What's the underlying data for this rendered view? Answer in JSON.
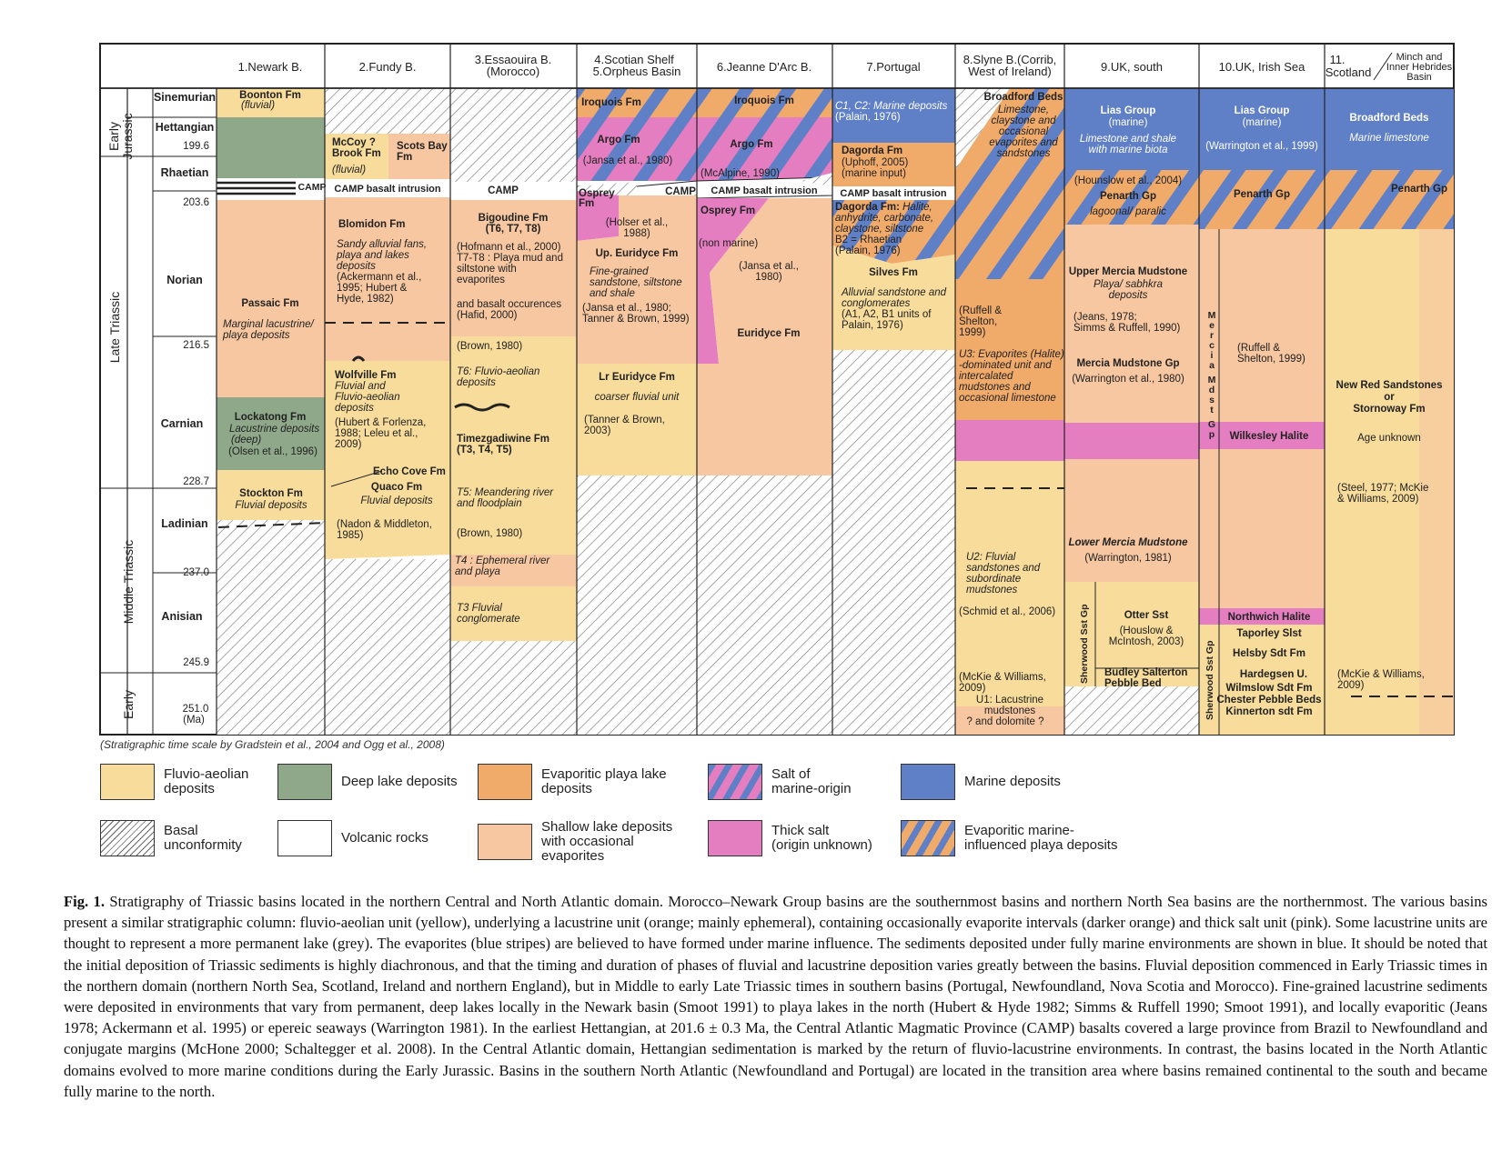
{
  "colors": {
    "fluvio": "#f7dc9b",
    "deep_lake": "#8fa88a",
    "evaporitic": "#f0aa6a",
    "shallow_lake": "#f6c7a0",
    "marine": "#5f7fc6",
    "thick_salt": "#e57ec0",
    "white": "#ffffff"
  },
  "columns": [
    "1.Newark B.",
    "2.Fundy B.",
    "3.Essaouira B.\n(Morocco)",
    "4.Scotian Shelf\n5.Orpheus Basin",
    "6.Jeanne D'Arc B.",
    "7.Portugal",
    "8.Slyne B.(Corrib,\nWest of Ireland)",
    "9.UK, south",
    "10.UK, Irish Sea",
    "11.\nScotland",
    "Minch and\nInner Hebrides\nBasin"
  ],
  "epochs": [
    "Early\nJurassic",
    "Late Triassic",
    "Middle Triassic",
    "Early"
  ],
  "stages": [
    "Sinemurian",
    "Hettangian",
    "Rhaetian",
    "Norian",
    "Carnian",
    "Ladinian",
    "Anisian"
  ],
  "ages": [
    "199.6",
    "203.6",
    "216.5",
    "228.7",
    "237.0",
    "245.9",
    "251.0\n(Ma)"
  ],
  "labels": {
    "c1": [
      "Boonton Fm",
      "(fluvial)",
      "CAMP",
      "Passaic Fm",
      "Marginal lacustrine/\nplaya deposits",
      "Lockatong Fm",
      "Lacustrine deposits\n(deep)",
      "(Olsen et al., 1996)",
      "Stockton Fm",
      "Fluvial deposits"
    ],
    "c2": [
      "McCoy\nBrook Fm",
      "Scots Bay\nFm",
      "(fluvial)",
      "CAMP basalt intrusion",
      "Blomidon Fm",
      "Sandy alluvial fans,\nplaya and lakes\ndeposits\n(Ackermann et al.,\n1995; Hubert &\nHyde, 1982)",
      "Wolfville Fm",
      "Fluvial and\nFluvio-aeolian\ndeposits",
      "(Hubert & Forlenza,\n1988; Leleu et al.,\n2009)",
      "Echo Cove Fm",
      "Quaco Fm",
      "Fluvial deposits",
      "(Nadon & Middleton,\n1985)"
    ],
    "c3": [
      "CAMP",
      "Bigoudine Fm\n(T6, T7, T8)",
      "(Hofmann et al., 2000)\nT7-T8 : Playa mud and\nsiltstone with\nevaporites",
      "and basalt occurences\n(Hafid, 2000)",
      "(Brown, 1980)",
      "T6: Fluvio-aeolian\ndeposits",
      "Timezgadiwine Fm\n(T3, T4, T5)",
      "T5: Meandering river\nand floodplain",
      "(Brown, 1980)",
      "T4 : Ephemeral river\nand playa",
      "T3 Fluvial\nconglomerate"
    ],
    "c4": [
      "Iroquois Fm",
      "Argo Fm",
      "(Jansa et al., 1980)",
      "Osprey\nFm",
      "CAMP",
      "(Holser et al.,\n1988)",
      "Up. Euridyce Fm",
      "Fine-grained\nsandstone, siltstone\nand shale",
      "(Jansa et al., 1980;\nTanner & Brown, 1999)",
      "Lr Euridyce Fm",
      "coarser fluvial unit",
      "(Tanner & Brown,\n2003)"
    ],
    "c5": [
      "Iroquois Fm",
      "Argo Fm",
      "(McAlpine, 1990)",
      "CAMP basalt intrusion",
      "Osprey Fm",
      "(non marine)",
      "(Jansa et al.,\n1980)",
      "Euridyce Fm"
    ],
    "c6": [
      "C1, C2: Marine deposits\n(Palain, 1976)",
      "Dagorda Fm",
      "(Uphoff, 2005)\n(marine input)",
      "CAMP basalt intrusion",
      "Dagorda Fm: Halite,\nanhydrite, carbonate,\nclaystone, siltstone\nB2 = Rhaetian\n(Palain, 1976)",
      "Silves Fm",
      "Alluvial sandstone and\nconglomerates\n(A1, A2, B1 units of\nPalain, 1976)"
    ],
    "c7": [
      "Broadford Beds",
      "Limestone,\nclaystone and\noccasional\nevaporites and\nsandstones",
      "(Ruffell &\nShelton,\n1999)",
      "U3: Evaporites (Halite)\n-dominated unit and\nintercalated\nmudstones and\noccasional limestone",
      "U2: Fluvial\nsandstones and\nsubordinate\nmudstones",
      "(Schmid et al., 2006)",
      "(McKie & Williams,\n2009)",
      "U1: Lacustrine\nmudstones\n? and dolomite"
    ],
    "c8": [
      "Lias Group",
      "(marine)",
      "Limestone and shale\nwith marine biota",
      "(Hounslow et al., 2004)",
      "Penarth Gp",
      "lagoonal/ paralic",
      "Upper Mercia Mudstone",
      "Playa/ sabhkra\ndeposits",
      "(Jeans, 1978;\nSimms & Ruffell, 1990)",
      "Mercia Mudstone Gp",
      "(Warrington et al., 1980)",
      "Lower Mercia Mudstone",
      "(Warrington, 1981)",
      "Sherwood Sst Gp",
      "Otter Sst",
      "(Houslow &\nMcIntosh, 2003)",
      "Budley Salterton\nPebble Bed"
    ],
    "c9": [
      "Lias Group",
      "(marine)",
      "(Warrington et al., 1999)",
      "Penarth Gp",
      "M\ne\nr\nc\ni\na\n\nM\nd\ns\nt\n\nG\np",
      "(Ruffell &\nShelton, 1999)",
      "Wilkesley Halite",
      "Northwich Halite",
      "Taporley Slst",
      "Helsby Sdt Fm",
      "Hardegsen U.",
      "Wilmslow Sdt Fm",
      "Chester Pebble Beds",
      "Kinnerton sdt Fm",
      "Sherwood Sst Gp"
    ],
    "c10": [
      "Broadford Beds",
      "Marine limestone",
      "Penarth Gp",
      "New Red Sandstones\nor\nStornoway Fm",
      "Age unknown",
      "(Steel, 1977; McKie\n& Williams, 2009)",
      "(McKie & Williams,\n2009)"
    ]
  },
  "timescale_credit": "(Stratigraphic time scale by Gradstein et al., 2004 and Ogg et al., 2008)",
  "legend": [
    {
      "label": "Fluvio-aeolian\ndeposits",
      "swatch": "fluvio"
    },
    {
      "label": "Deep lake deposits",
      "swatch": "deep_lake"
    },
    {
      "label": "Evaporitic playa lake\ndeposits",
      "swatch": "evaporitic"
    },
    {
      "label": "Salt of\nmarine-origin",
      "swatch": "salt_marine"
    },
    {
      "label": "Marine deposits",
      "swatch": "marine"
    },
    {
      "label": "Basal\nunconformity",
      "swatch": "unconformity"
    },
    {
      "label": "Volcanic rocks",
      "swatch": "volcanic"
    },
    {
      "label": "Shallow lake deposits\nwith occasional\nevaporites",
      "swatch": "shallow_lake"
    },
    {
      "label": "Thick salt\n(origin unknown)",
      "swatch": "thick_salt"
    },
    {
      "label": "Evaporitic marine-\ninfluenced playa deposits",
      "swatch": "evap_marine"
    }
  ],
  "caption": {
    "fig": "Fig. 1.",
    "text": "Stratigraphy of Triassic basins located in the northern Central and North Atlantic domain. Morocco–Newark Group basins are the southernmost basins and northern North Sea basins are the northernmost. The various basins present a similar stratigraphic column: fluvio-aeolian unit (yellow), underlying a lacustrine unit (orange; mainly ephemeral), containing occasionally evaporite intervals (darker orange) and thick salt unit (pink). Some lacustrine units are thought to represent a more permanent lake (grey). The evaporites (blue stripes) are believed to have formed under marine influence. The sediments deposited under fully marine environments are shown in blue. It should be noted that the initial deposition of Triassic sediments is highly diachronous, and that the timing and duration of phases of fluvial and lacustrine deposition varies greatly between the basins. Fluvial deposition commenced in Early Triassic times in the northern domain (northern North Sea, Scotland, Ireland and northern England), but in Middle to early Late Triassic times in southern basins (Portugal, Newfoundland, Nova Scotia and Morocco). Fine-grained lacustrine sediments were deposited in environments that vary from permanent, deep lakes locally in the Newark basin (Smoot 1991) to playa lakes in the north (Hubert & Hyde 1982; Simms & Ruffell 1990; Smoot 1991), and locally evaporitic (Jeans 1978; Ackermann et al. 1995) or epereic seaways (Warrington 1981). In the earliest Hettangian, at 201.6 ± 0.3 Ma, the Central Atlantic Magmatic Province (CAMP) basalts covered a large province from Brazil to Newfoundland and conjugate margins (McHone 2000; Schaltegger et al. 2008). In the Central Atlantic domain, Hettangian sedimentation is marked by the return of fluvio-lacustrine environments. In contrast, the basins located in the North Atlantic domains evolved to more marine conditions during the Early Jurassic. Basins in the southern North Atlantic (Newfoundland and Portugal) are located in the transition area where basins remained continental to the south and became fully marine to the north."
  }
}
